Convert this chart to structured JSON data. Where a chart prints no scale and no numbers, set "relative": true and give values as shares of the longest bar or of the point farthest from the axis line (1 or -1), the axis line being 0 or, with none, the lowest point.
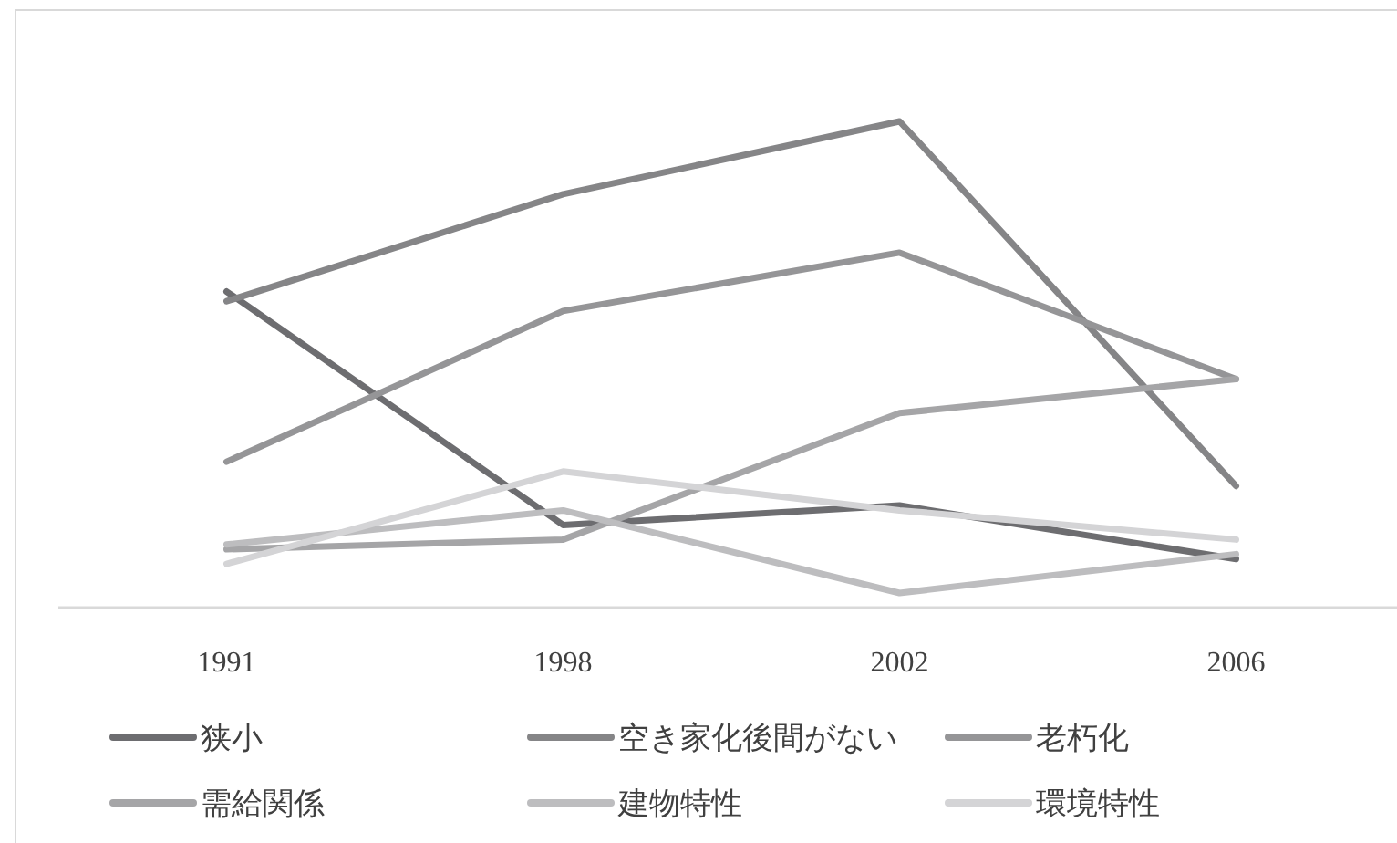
{
  "chart_data": {
    "type": "line",
    "relative": true,
    "categories": [
      "1991",
      "1998",
      "2002",
      "2006"
    ],
    "legend": "bottom",
    "grid": false,
    "series": [
      {
        "name": "狭小",
        "color": "#6d6d70",
        "values": [
          0.65,
          0.17,
          0.21,
          0.1
        ]
      },
      {
        "name": "空き家化後間がない",
        "color": "#858587",
        "values": [
          0.63,
          0.85,
          1,
          0.25
        ]
      },
      {
        "name": "老朽化",
        "color": "#959597",
        "values": [
          0.3,
          0.61,
          0.73,
          0.47
        ]
      },
      {
        "name": "需給関係",
        "color": "#a5a5a7",
        "values": [
          0.12,
          0.14,
          0.4,
          0.47
        ]
      },
      {
        "name": "建物特性",
        "color": "#bdbdbf",
        "values": [
          0.13,
          0.2,
          0.03,
          0.11
        ]
      },
      {
        "name": "環境特性",
        "color": "#d4d4d6",
        "values": [
          0.09,
          0.28,
          0.2,
          0.14
        ]
      }
    ]
  }
}
